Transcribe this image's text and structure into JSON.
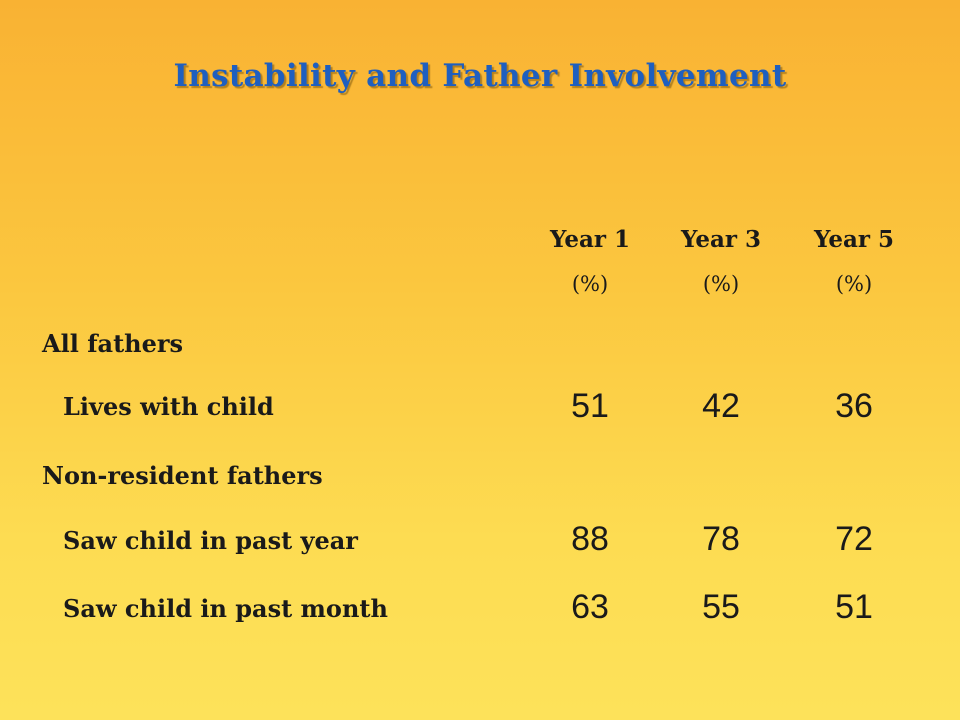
{
  "title": "Instability and Father Involvement",
  "columns": [
    {
      "label": "Year 1",
      "unit": "(%)"
    },
    {
      "label": "Year 3",
      "unit": "(%)"
    },
    {
      "label": "Year 5",
      "unit": "(%)"
    }
  ],
  "sections": [
    {
      "label": "All fathers",
      "rows": [
        {
          "label": "Lives with child",
          "values": [
            "51",
            "42",
            "36"
          ]
        }
      ]
    },
    {
      "label": "Non-resident fathers",
      "rows": [
        {
          "label": "Saw child in past year",
          "values": [
            "88",
            "78",
            "72"
          ]
        },
        {
          "label": "Saw child in past month",
          "values": [
            "63",
            "55",
            "51"
          ]
        }
      ]
    }
  ]
}
